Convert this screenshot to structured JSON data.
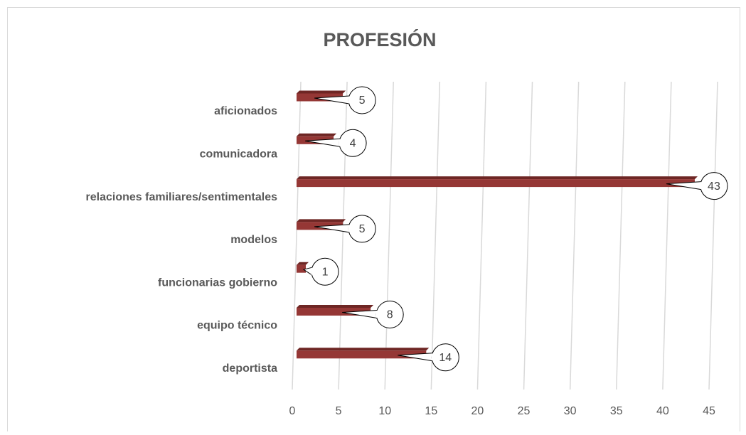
{
  "chart_data": {
    "type": "bar",
    "orientation": "horizontal",
    "title": "PROFESIÓN",
    "categories": [
      "aficionados",
      "comunicadora",
      "relaciones familiares/sentimentales",
      "modelos",
      "funcionarias gobierno",
      "equipo técnico",
      "deportista"
    ],
    "values": [
      5,
      4,
      43,
      5,
      1,
      8,
      14
    ],
    "color": "#953735",
    "xlim": [
      0,
      45
    ],
    "xticks": [
      0,
      5,
      10,
      15,
      20,
      25,
      30,
      35,
      40,
      45
    ],
    "grid": true
  }
}
